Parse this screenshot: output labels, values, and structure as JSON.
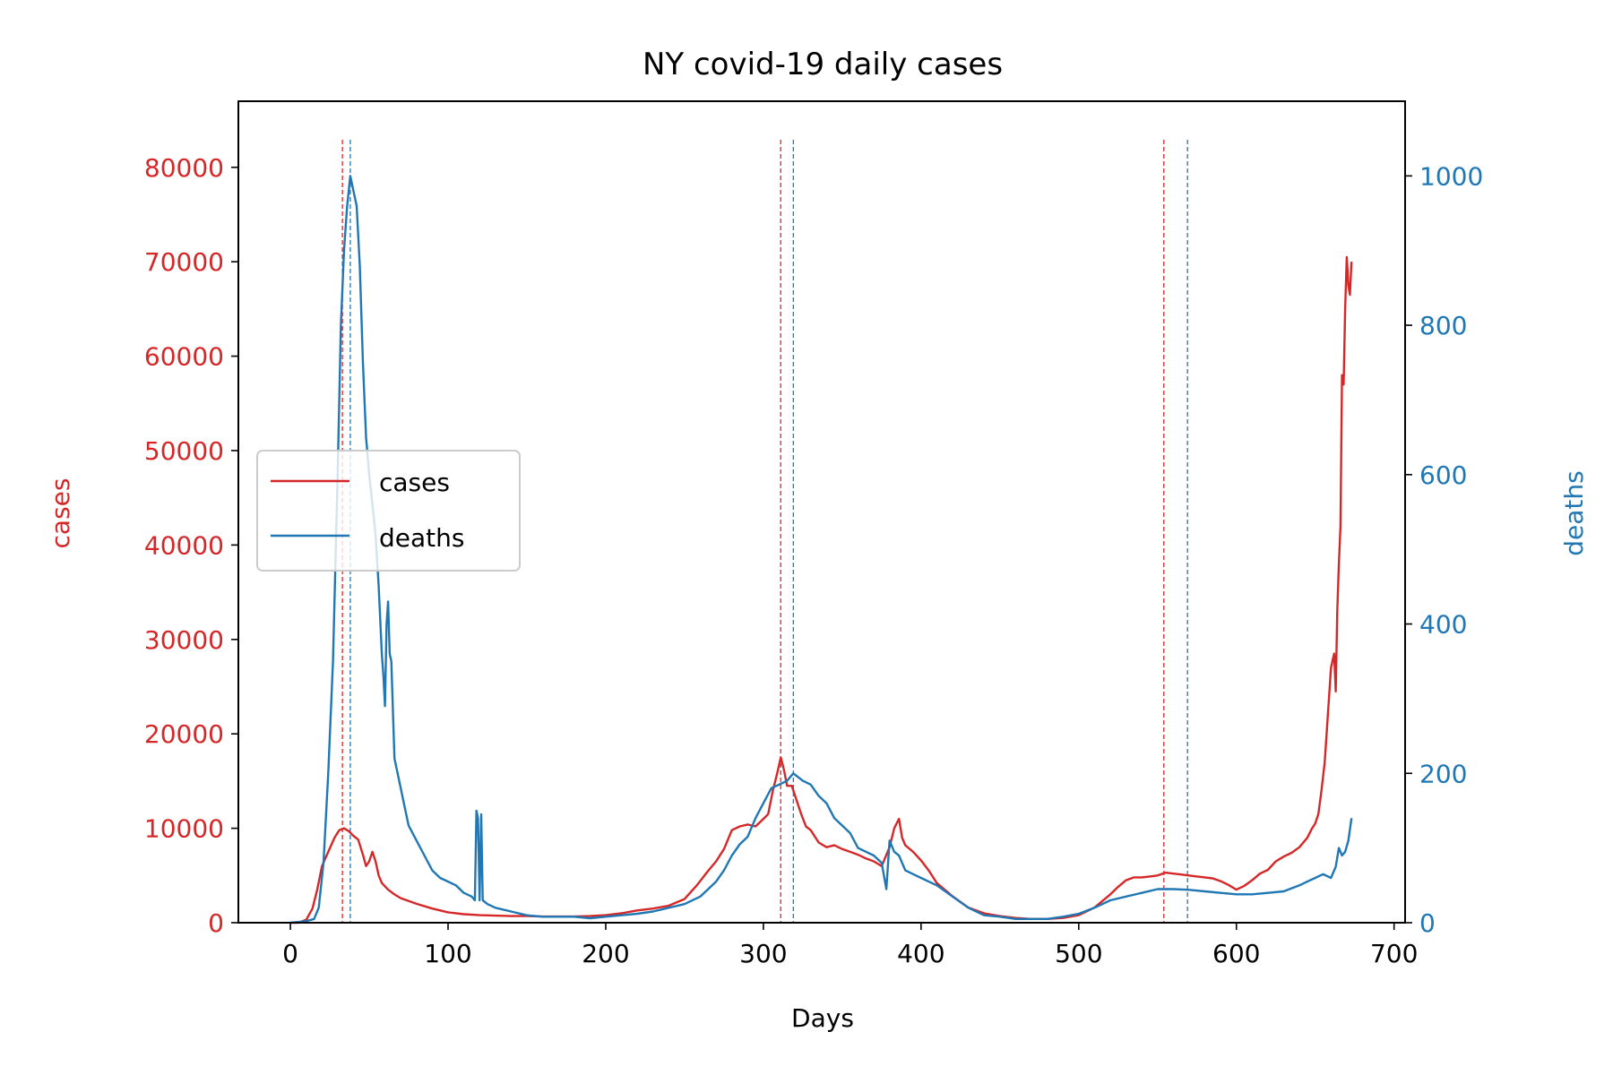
{
  "chart_data": {
    "type": "line",
    "title": "NY covid-19 daily cases",
    "xlabel": "Days",
    "ylabel_left": "cases",
    "ylabel_right": "deaths",
    "xlim": [
      -33,
      707
    ],
    "ylim_left": [
      0,
      87000
    ],
    "ylim_right": [
      0,
      1100
    ],
    "xticks": [
      0,
      100,
      200,
      300,
      400,
      500,
      600,
      700
    ],
    "yticks_left": [
      0,
      10000,
      20000,
      30000,
      40000,
      50000,
      60000,
      70000,
      80000
    ],
    "yticks_right": [
      0,
      200,
      400,
      600,
      800,
      1000
    ],
    "grid": false,
    "legend_position": "center-left",
    "colors": {
      "cases": "#d62728",
      "deaths": "#1f77b4"
    },
    "vlines": {
      "cases": [
        33,
        311,
        554
      ],
      "deaths": [
        38,
        319,
        569
      ]
    },
    "series": [
      {
        "name": "cases",
        "axis": "left",
        "x": [
          0,
          5,
          10,
          14,
          17,
          20,
          24,
          28,
          31,
          34,
          37,
          40,
          43,
          46,
          48,
          50,
          52,
          54,
          56,
          58,
          62,
          66,
          70,
          80,
          90,
          100,
          110,
          120,
          130,
          140,
          150,
          160,
          170,
          180,
          190,
          200,
          210,
          220,
          230,
          240,
          250,
          258,
          265,
          270,
          275,
          280,
          285,
          290,
          295,
          300,
          303,
          306,
          309,
          311,
          313,
          315,
          318,
          321,
          324,
          327,
          330,
          335,
          340,
          345,
          350,
          355,
          360,
          365,
          370,
          375,
          380,
          383,
          386,
          388,
          390,
          395,
          400,
          405,
          410,
          420,
          430,
          440,
          450,
          460,
          470,
          480,
          490,
          500,
          510,
          520,
          525,
          530,
          535,
          540,
          545,
          550,
          555,
          560,
          565,
          570,
          575,
          580,
          585,
          590,
          595,
          600,
          605,
          610,
          615,
          620,
          625,
          630,
          635,
          640,
          645,
          648,
          650,
          652,
          654,
          656,
          658,
          660,
          662,
          663,
          664,
          665,
          666,
          667,
          668,
          669,
          670,
          671,
          672,
          673
        ],
        "values": [
          0,
          0,
          300,
          1500,
          3500,
          6000,
          7500,
          9000,
          9800,
          10000,
          9700,
          9200,
          8800,
          7200,
          6000,
          6500,
          7500,
          6500,
          5000,
          4200,
          3500,
          3000,
          2600,
          2000,
          1500,
          1100,
          900,
          800,
          750,
          700,
          700,
          650,
          650,
          650,
          700,
          800,
          1000,
          1300,
          1500,
          1800,
          2500,
          4000,
          5500,
          6500,
          7800,
          9800,
          10200,
          10400,
          10200,
          11000,
          11500,
          14000,
          16000,
          17500,
          16200,
          14500,
          14500,
          13000,
          11500,
          10200,
          9800,
          8500,
          8000,
          8200,
          7800,
          7500,
          7200,
          6800,
          6500,
          6000,
          8000,
          10000,
          11000,
          9000,
          8200,
          7500,
          6600,
          5500,
          4200,
          2800,
          1600,
          1000,
          700,
          500,
          400,
          400,
          500,
          800,
          1600,
          3000,
          3800,
          4500,
          4800,
          4800,
          4900,
          5000,
          5300,
          5200,
          5100,
          5000,
          4900,
          4800,
          4700,
          4400,
          4000,
          3500,
          3900,
          4500,
          5200,
          5600,
          6500,
          7000,
          7400,
          8000,
          9000,
          10000,
          10500,
          11500,
          14000,
          17000,
          22000,
          27000,
          28500,
          24500,
          33000,
          38000,
          42000,
          58000,
          57000,
          65000,
          70500,
          67500,
          66500,
          70000
        ]
      },
      {
        "name": "deaths",
        "axis": "right",
        "x": [
          0,
          5,
          10,
          15,
          18,
          21,
          24,
          27,
          30,
          32,
          34,
          36,
          38,
          40,
          42,
          44,
          46,
          48,
          50,
          52,
          54,
          56,
          58,
          59,
          60,
          61,
          62,
          63,
          64,
          66,
          68,
          70,
          72,
          75,
          80,
          85,
          90,
          95,
          100,
          105,
          110,
          115,
          117,
          118,
          119,
          120,
          121,
          122,
          125,
          130,
          140,
          150,
          160,
          170,
          180,
          190,
          200,
          210,
          220,
          230,
          240,
          250,
          260,
          265,
          270,
          275,
          280,
          285,
          290,
          295,
          300,
          305,
          310,
          315,
          319,
          322,
          325,
          330,
          335,
          340,
          345,
          350,
          355,
          360,
          365,
          370,
          375,
          378,
          380,
          383,
          386,
          390,
          395,
          400,
          410,
          420,
          430,
          440,
          450,
          460,
          470,
          480,
          490,
          500,
          510,
          520,
          530,
          540,
          550,
          560,
          570,
          580,
          590,
          600,
          610,
          620,
          630,
          640,
          645,
          650,
          655,
          660,
          663,
          665,
          667,
          669,
          671,
          673
        ],
        "values": [
          0,
          1,
          2,
          5,
          20,
          80,
          200,
          350,
          600,
          800,
          900,
          960,
          1000,
          980,
          960,
          880,
          750,
          650,
          600,
          560,
          520,
          450,
          360,
          330,
          290,
          400,
          430,
          360,
          350,
          220,
          200,
          180,
          160,
          130,
          110,
          90,
          70,
          60,
          55,
          50,
          40,
          35,
          30,
          150,
          140,
          30,
          145,
          30,
          25,
          20,
          15,
          10,
          8,
          8,
          8,
          6,
          8,
          10,
          12,
          15,
          20,
          25,
          35,
          45,
          55,
          70,
          90,
          105,
          115,
          140,
          160,
          180,
          185,
          190,
          200,
          195,
          190,
          185,
          170,
          160,
          140,
          130,
          120,
          100,
          95,
          90,
          80,
          45,
          110,
          95,
          90,
          70,
          65,
          60,
          50,
          35,
          20,
          10,
          8,
          5,
          5,
          5,
          8,
          12,
          20,
          30,
          35,
          40,
          45,
          45,
          44,
          42,
          40,
          38,
          38,
          40,
          42,
          50,
          55,
          60,
          65,
          60,
          75,
          100,
          90,
          95,
          110,
          140
        ]
      }
    ]
  }
}
